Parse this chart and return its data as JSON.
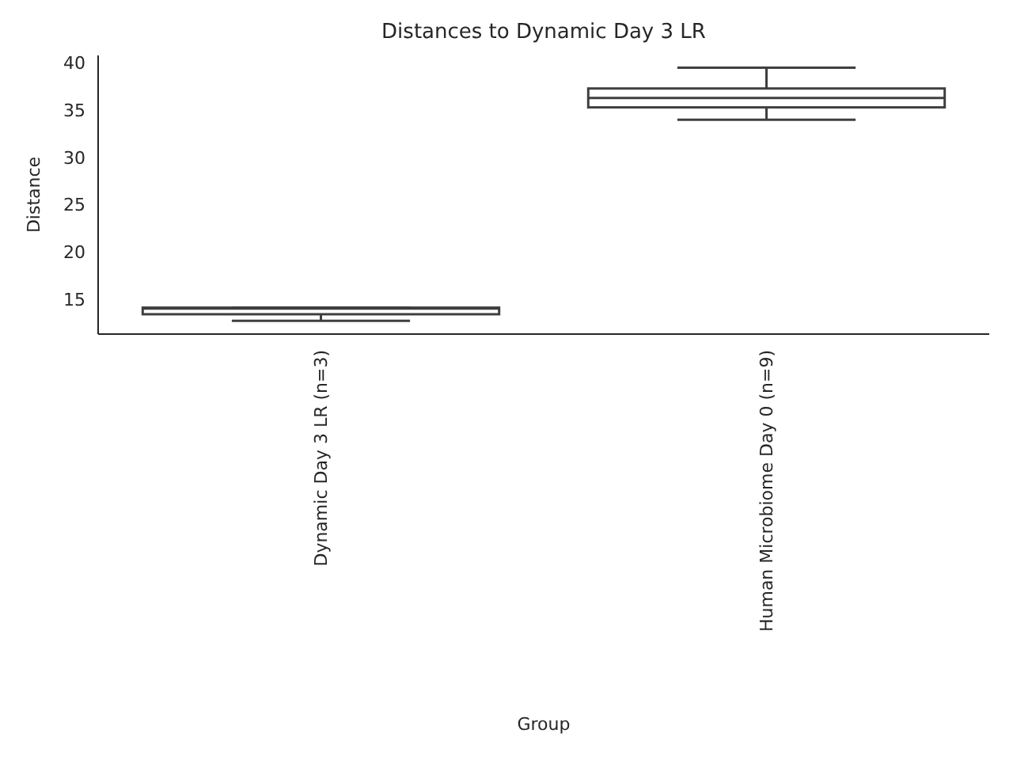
{
  "chart_data": {
    "type": "box",
    "title": "Distances to Dynamic Day 3 LR",
    "xlabel": "Group",
    "ylabel": "Distance",
    "categories": [
      "Dynamic Day 3 LR (n=3)",
      "Human Microbiome Day 0 (n=9)"
    ],
    "boxes": [
      {
        "low": 12.7,
        "q1": 13.4,
        "median": 14.0,
        "q3": 14.1,
        "high": 14.1
      },
      {
        "low": 34.0,
        "q1": 35.3,
        "median": 36.3,
        "q3": 37.3,
        "high": 39.5
      }
    ],
    "color": "#3f3f3f",
    "ylim": [
      11.3,
      40.8
    ],
    "yticks": [
      15,
      20,
      25,
      30,
      35,
      40
    ],
    "grid": false
  }
}
